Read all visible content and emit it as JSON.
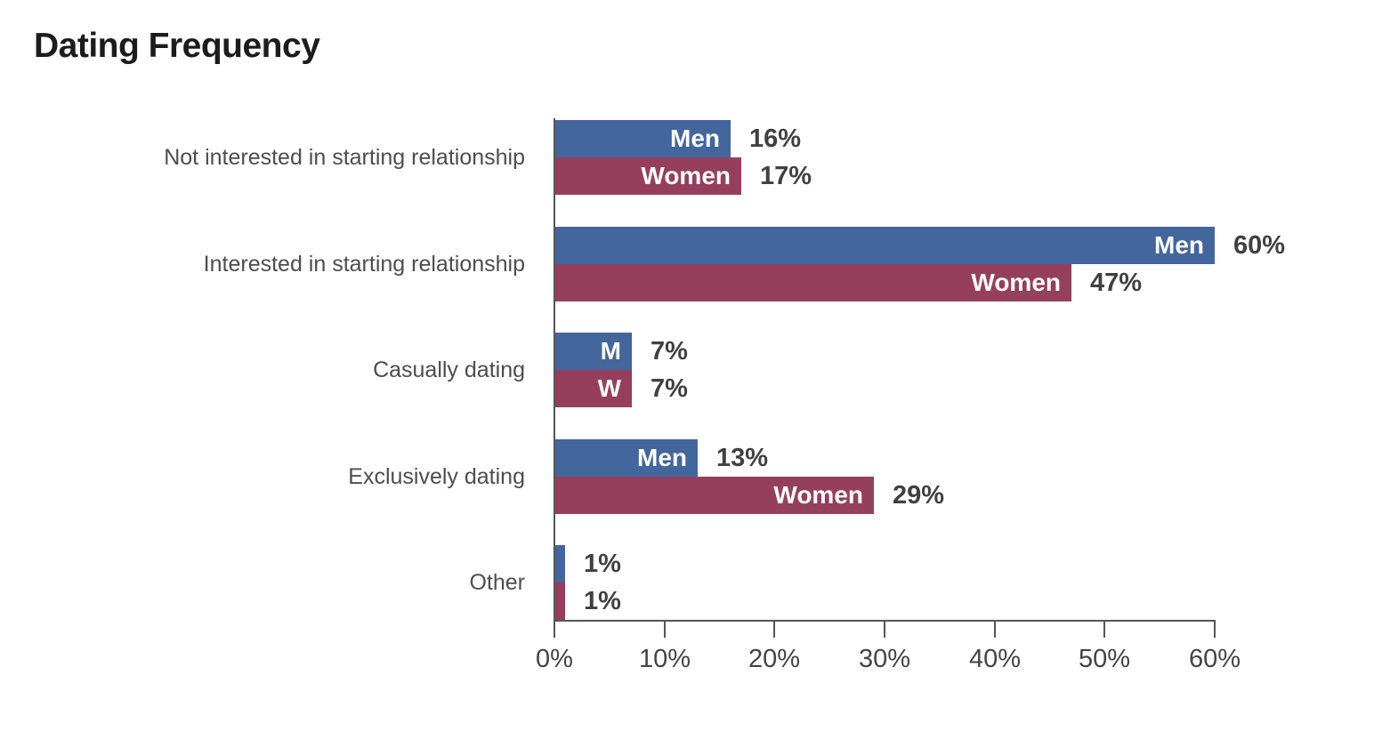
{
  "header": {
    "title": "Dating Frequency"
  },
  "chart_data": {
    "type": "bar",
    "orientation": "horizontal",
    "title": "Dating Frequency",
    "categories": [
      "Not interested in starting relationship",
      "Interested in starting relationship",
      "Casually dating",
      "Exclusively dating",
      "Other"
    ],
    "series": [
      {
        "name": "Men",
        "color": "#43669d",
        "values": [
          16,
          60,
          7,
          13,
          1
        ],
        "in_bar_labels": [
          "Men",
          "Men",
          "M",
          "Men",
          ""
        ]
      },
      {
        "name": "Women",
        "color": "#953f5d",
        "values": [
          17,
          47,
          7,
          29,
          1
        ],
        "in_bar_labels": [
          "Women",
          "Women",
          "W",
          "Women",
          ""
        ]
      }
    ],
    "value_suffix": "%",
    "x_ticks": [
      "0%",
      "10%",
      "20%",
      "30%",
      "40%",
      "50%",
      "60%"
    ],
    "xlim": [
      0,
      60
    ],
    "grid": false,
    "legend_position": "in-bar",
    "colors": {
      "bar_label_text": "#ffffff",
      "value_label_text": "#404040",
      "axis": "#555555",
      "tick_label_text": "#444444",
      "category_label_text": "#4d4d4d",
      "title_text": "#1c1c1c",
      "background": "#ffffff"
    }
  }
}
